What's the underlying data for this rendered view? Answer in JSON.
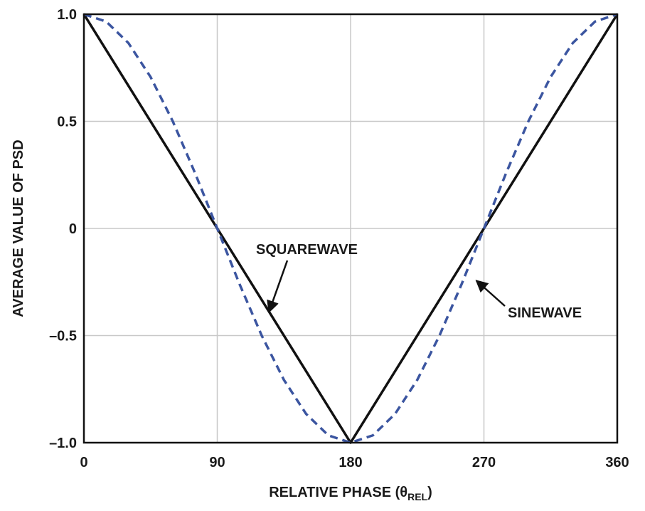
{
  "chart_data": {
    "type": "line",
    "title": "",
    "xlabel": "RELATIVE PHASE (θ",
    "xlabel_sub": "REL",
    "xlabel_close": ")",
    "ylabel": "AVERAGE VALUE OF PSD",
    "xlim": [
      0,
      360
    ],
    "ylim": [
      -1.0,
      1.0
    ],
    "x_ticks": [
      0,
      90,
      180,
      270,
      360
    ],
    "x_tick_labels": [
      "0",
      "90",
      "180",
      "270",
      "360"
    ],
    "y_ticks": [
      1.0,
      0.5,
      0,
      -0.5,
      -1.0
    ],
    "y_tick_labels": [
      "1.0",
      "0.5",
      "0",
      "–0.5",
      "–1.0"
    ],
    "grid": true,
    "series": [
      {
        "name": "SQUAREWAVE",
        "style": "solid",
        "color": "#111111",
        "x": [
          0,
          180,
          360
        ],
        "y": [
          1.0,
          -1.0,
          1.0
        ]
      },
      {
        "name": "SINEWAVE",
        "style": "dashed",
        "color": "#3b55a0",
        "x": [
          0,
          15,
          30,
          45,
          60,
          75,
          90,
          105,
          120,
          135,
          150,
          165,
          180,
          195,
          210,
          225,
          240,
          255,
          270,
          285,
          300,
          315,
          330,
          345,
          360
        ],
        "y": [
          1.0,
          0.966,
          0.866,
          0.707,
          0.5,
          0.259,
          0.0,
          -0.259,
          -0.5,
          -0.707,
          -0.866,
          -0.966,
          -1.0,
          -0.966,
          -0.866,
          -0.707,
          -0.5,
          -0.259,
          0.0,
          0.259,
          0.5,
          0.707,
          0.866,
          0.966,
          1.0
        ]
      }
    ],
    "annotations": [
      {
        "text": "SQUAREWAVE",
        "series": "SQUAREWAVE",
        "point_x": 123,
        "point_y": -0.37
      },
      {
        "text": "SINEWAVE",
        "series": "SINEWAVE",
        "point_x": 262,
        "point_y": -0.25
      }
    ]
  }
}
